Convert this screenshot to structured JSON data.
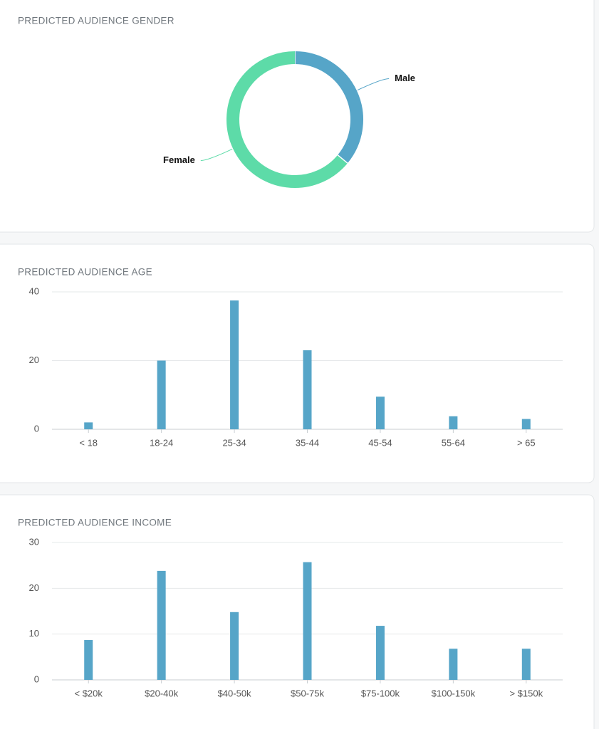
{
  "chart_data": [
    {
      "type": "pie",
      "title": "PREDICTED AUDIENCE GENDER",
      "categories": [
        "Male",
        "Female"
      ],
      "values": [
        36,
        64
      ],
      "colors": [
        "#56a5c8",
        "#5ddba8"
      ]
    },
    {
      "type": "bar",
      "title": "PREDICTED AUDIENCE AGE",
      "categories": [
        "< 18",
        "18-24",
        "25-34",
        "35-44",
        "45-54",
        "55-64",
        "> 65"
      ],
      "values": [
        2,
        20,
        37.5,
        23,
        9.5,
        3.8,
        3
      ],
      "color": "#56a5c8",
      "ylim": [
        0,
        40
      ],
      "yticks": [
        0,
        20,
        40
      ],
      "grid": true
    },
    {
      "type": "bar",
      "title": "PREDICTED AUDIENCE INCOME",
      "categories": [
        "< $20k",
        "$20-40k",
        "$40-50k",
        "$50-75k",
        "$75-100k",
        "$100-150k",
        "> $150k"
      ],
      "values": [
        8.7,
        23.8,
        14.8,
        25.7,
        11.8,
        6.8,
        6.8
      ],
      "color": "#56a5c8",
      "ylim": [
        0,
        30
      ],
      "yticks": [
        0,
        10,
        20,
        30
      ],
      "grid": true
    }
  ]
}
